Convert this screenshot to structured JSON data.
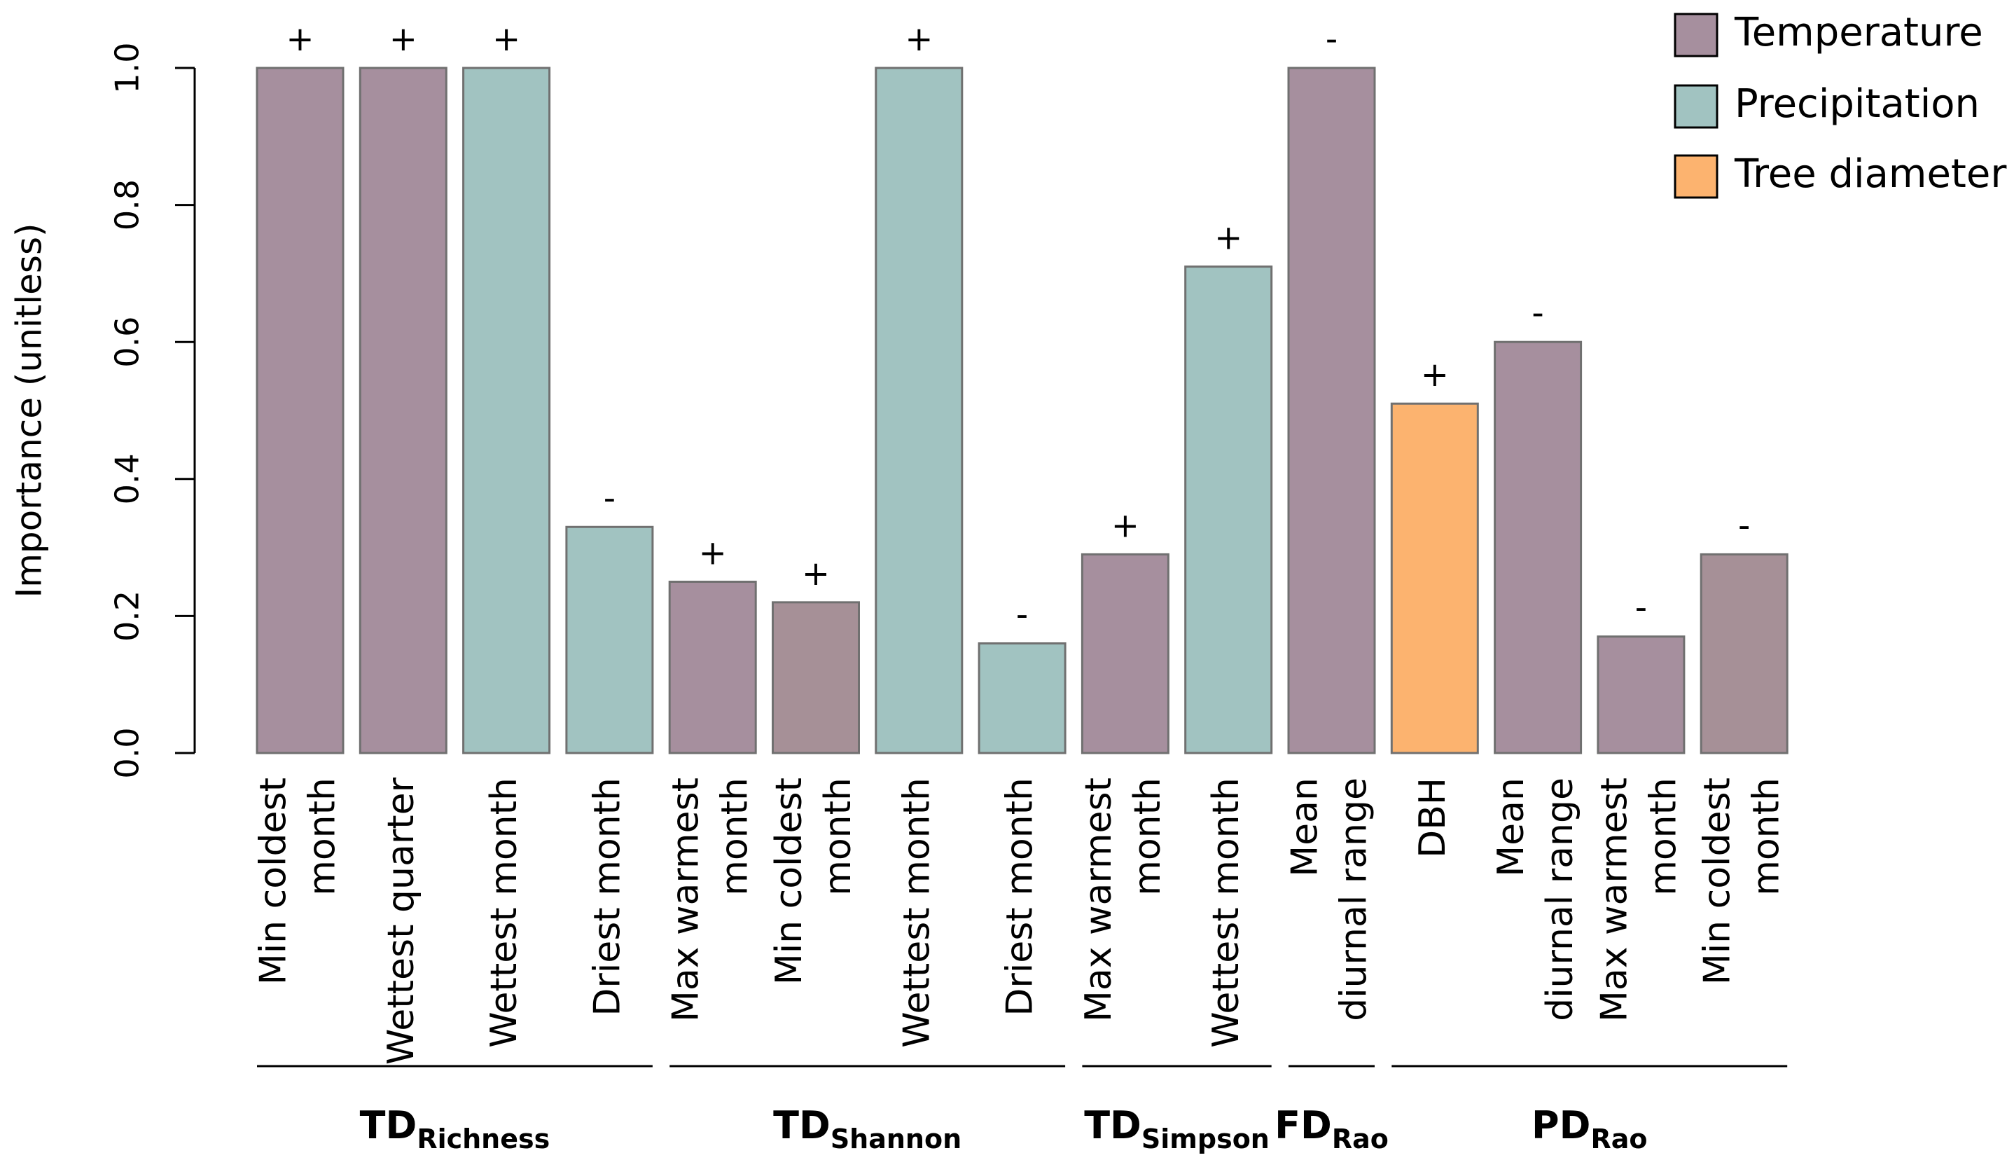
{
  "chart_data": {
    "type": "bar",
    "title": "",
    "xlabel": "",
    "ylabel": "Importance (unitless)",
    "ylim": [
      0,
      1
    ],
    "yticks": [
      "0.0",
      "0.2",
      "0.4",
      "0.6",
      "0.8",
      "1.0"
    ],
    "colors": {
      "Temperature": "#a68f9e",
      "Precipitation": "#a1c3c1",
      "Tree diameter": "#fcb36f"
    },
    "legend": {
      "position": "top-right",
      "entries": [
        "Temperature",
        "Precipitation",
        "Tree diameter"
      ]
    },
    "bars": [
      {
        "label": [
          "Min coldest",
          "month"
        ],
        "value": 1.0,
        "category": "Temperature",
        "sign": "+",
        "color": "#a68f9e"
      },
      {
        "label": [
          "Wettest quarter"
        ],
        "value": 1.0,
        "category": "Temperature",
        "sign": "+",
        "color": "#a68f9e"
      },
      {
        "label": [
          "Wettest month"
        ],
        "value": 1.0,
        "category": "Precipitation",
        "sign": "+",
        "color": "#a1c3c1"
      },
      {
        "label": [
          "Driest month"
        ],
        "value": 0.33,
        "category": "Precipitation",
        "sign": "-",
        "color": "#a1c3c1"
      },
      {
        "label": [
          "Max warmest",
          "month"
        ],
        "value": 0.25,
        "category": "Temperature",
        "sign": "+",
        "color": "#a68f9e"
      },
      {
        "label": [
          "Min coldest",
          "month"
        ],
        "value": 0.22,
        "category": "Temperature",
        "sign": "+",
        "color": "#a69097"
      },
      {
        "label": [
          "Wettest month"
        ],
        "value": 1.0,
        "category": "Precipitation",
        "sign": "+",
        "color": "#a1c3c1"
      },
      {
        "label": [
          "Driest month"
        ],
        "value": 0.16,
        "category": "Precipitation",
        "sign": "-",
        "color": "#a1c3c1"
      },
      {
        "label": [
          "Max warmest",
          "month"
        ],
        "value": 0.29,
        "category": "Temperature",
        "sign": "+",
        "color": "#a68f9e"
      },
      {
        "label": [
          "Wettest month"
        ],
        "value": 0.71,
        "category": "Precipitation",
        "sign": "+",
        "color": "#a1c3c1"
      },
      {
        "label": [
          "Mean",
          "diurnal range"
        ],
        "value": 1.0,
        "category": "Temperature",
        "sign": "-",
        "color": "#a68f9e"
      },
      {
        "label": [
          "DBH"
        ],
        "value": 0.51,
        "category": "Tree diameter",
        "sign": "+",
        "color": "#fcb36f"
      },
      {
        "label": [
          "Mean",
          "diurnal range"
        ],
        "value": 0.6,
        "category": "Temperature",
        "sign": "-",
        "color": "#a68f9e"
      },
      {
        "label": [
          "Max warmest",
          "month"
        ],
        "value": 0.17,
        "category": "Temperature",
        "sign": "-",
        "color": "#a68f9e"
      },
      {
        "label": [
          "Min coldest",
          "month"
        ],
        "value": 0.29,
        "category": "Temperature",
        "sign": "-",
        "color": "#a69097"
      }
    ],
    "groups": [
      {
        "main": "TD",
        "sub": "Richness",
        "start": 0,
        "end": 3
      },
      {
        "main": "TD",
        "sub": "Shannon",
        "start": 4,
        "end": 7
      },
      {
        "main": "TD",
        "sub": "Simpson",
        "start": 8,
        "end": 9
      },
      {
        "main": "FD",
        "sub": "Rao",
        "start": 10,
        "end": 10
      },
      {
        "main": "PD",
        "sub": "Rao",
        "start": 11,
        "end": 14
      }
    ]
  }
}
